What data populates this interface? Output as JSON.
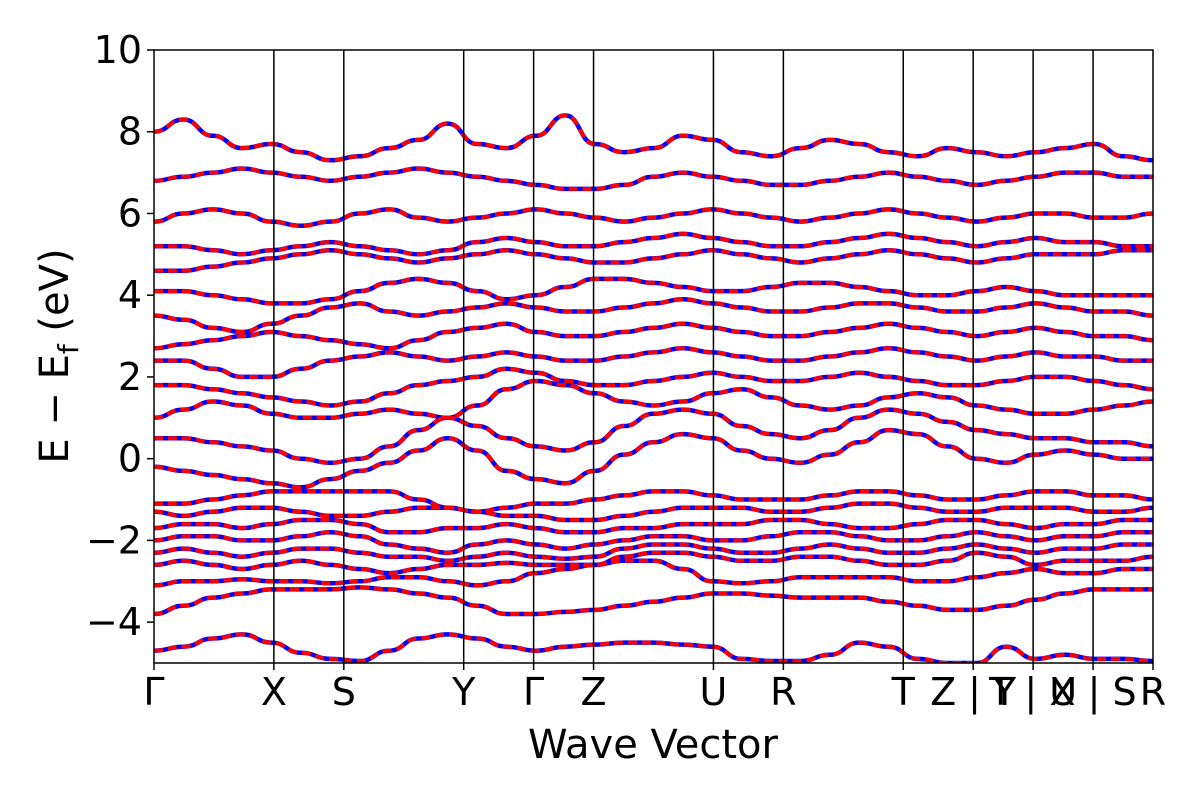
{
  "chart_data": {
    "type": "line",
    "title": "",
    "xlabel": "Wave Vector",
    "ylabel_main": "E − E",
    "ylabel_sub": "f",
    "ylabel_unit": " (eV)",
    "ylim": [
      -5,
      10
    ],
    "yticks": [
      -4,
      -2,
      0,
      2,
      4,
      6,
      8,
      10
    ],
    "ytick_labels": [
      "−4",
      "−2",
      "0",
      "2",
      "4",
      "6",
      "8",
      "10"
    ],
    "xlim": [
      0,
      100
    ],
    "kpoints": [
      {
        "label": "Γ",
        "x": 0
      },
      {
        "label": "X",
        "x": 12
      },
      {
        "label": "S",
        "x": 19
      },
      {
        "label": "Y",
        "x": 31
      },
      {
        "label": "Γ",
        "x": 38
      },
      {
        "label": "Z",
        "x": 44
      },
      {
        "label": "U",
        "x": 56
      },
      {
        "label": "R",
        "x": 63
      },
      {
        "label": "T",
        "x": 75
      },
      {
        "label": "Z | Y",
        "x": 82
      },
      {
        "label": "T | U",
        "x": 88
      },
      {
        "label": "X | S",
        "x": 94
      },
      {
        "label": "R",
        "x": 100
      }
    ],
    "grid": false,
    "series": [
      {
        "color": "#0000ff",
        "style": "solid",
        "bands": [
          [
            -4.7,
            -4.6,
            -4.4,
            -4.3,
            -4.5,
            -4.75,
            -4.9,
            -4.95,
            -4.7,
            -4.4,
            -4.3,
            -4.4,
            -4.6,
            -4.7,
            -4.6,
            -4.55,
            -4.5,
            -4.5,
            -4.55,
            -4.6,
            -4.9,
            -4.95,
            -4.95,
            -4.8,
            -4.5,
            -4.6,
            -4.9,
            -5.0,
            -5.0,
            -4.6,
            -4.9,
            -4.8,
            -4.9,
            -4.9,
            -4.95
          ],
          [
            -3.8,
            -3.6,
            -3.4,
            -3.3,
            -3.2,
            -3.2,
            -3.2,
            -3.15,
            -3.2,
            -3.3,
            -3.4,
            -3.6,
            -3.8,
            -3.8,
            -3.75,
            -3.7,
            -3.6,
            -3.5,
            -3.4,
            -3.3,
            -3.3,
            -3.35,
            -3.4,
            -3.4,
            -3.4,
            -3.5,
            -3.6,
            -3.7,
            -3.7,
            -3.6,
            -3.45,
            -3.3,
            -3.2,
            -3.2,
            -3.2
          ],
          [
            -3.1,
            -3.0,
            -3.0,
            -2.95,
            -3.0,
            -3.0,
            -3.05,
            -3.0,
            -2.9,
            -2.9,
            -3.0,
            -3.1,
            -3.0,
            -2.8,
            -2.7,
            -2.6,
            -2.5,
            -2.5,
            -2.7,
            -3.0,
            -3.05,
            -3.0,
            -2.9,
            -2.9,
            -2.9,
            -2.9,
            -3.0,
            -3.0,
            -2.9,
            -2.8,
            -2.7,
            -2.8,
            -2.8,
            -2.7,
            -2.7
          ],
          [
            -2.6,
            -2.5,
            -2.6,
            -2.7,
            -2.6,
            -2.5,
            -2.6,
            -2.7,
            -2.8,
            -2.7,
            -2.6,
            -2.6,
            -2.55,
            -2.6,
            -2.6,
            -2.6,
            -2.4,
            -2.3,
            -2.3,
            -2.4,
            -2.5,
            -2.5,
            -2.4,
            -2.4,
            -2.5,
            -2.6,
            -2.6,
            -2.5,
            -2.3,
            -2.4,
            -2.6,
            -2.5,
            -2.5,
            -2.5,
            -2.4
          ],
          [
            -2.3,
            -2.2,
            -2.3,
            -2.4,
            -2.3,
            -2.2,
            -2.2,
            -2.3,
            -2.4,
            -2.4,
            -2.5,
            -2.4,
            -2.3,
            -2.4,
            -2.45,
            -2.4,
            -2.2,
            -2.1,
            -2.1,
            -2.2,
            -2.3,
            -2.3,
            -2.2,
            -2.1,
            -2.2,
            -2.3,
            -2.3,
            -2.2,
            -2.1,
            -2.2,
            -2.3,
            -2.2,
            -2.2,
            -2.1,
            -2.1
          ],
          [
            -2.0,
            -1.9,
            -1.9,
            -2.0,
            -2.0,
            -1.9,
            -1.8,
            -1.9,
            -2.1,
            -2.2,
            -2.3,
            -2.1,
            -2.0,
            -2.1,
            -2.2,
            -2.1,
            -2.0,
            -1.9,
            -1.9,
            -2.0,
            -2.0,
            -1.9,
            -1.8,
            -1.8,
            -1.9,
            -2.0,
            -2.0,
            -1.9,
            -1.8,
            -1.9,
            -2.0,
            -1.9,
            -1.9,
            -1.8,
            -1.8
          ],
          [
            -1.7,
            -1.6,
            -1.6,
            -1.7,
            -1.6,
            -1.5,
            -1.5,
            -1.6,
            -1.8,
            -1.8,
            -1.7,
            -1.7,
            -1.6,
            -1.7,
            -1.8,
            -1.8,
            -1.7,
            -1.7,
            -1.6,
            -1.6,
            -1.6,
            -1.5,
            -1.5,
            -1.6,
            -1.7,
            -1.7,
            -1.6,
            -1.5,
            -1.5,
            -1.6,
            -1.7,
            -1.6,
            -1.6,
            -1.5,
            -1.5
          ],
          [
            -1.3,
            -1.4,
            -1.3,
            -1.2,
            -1.2,
            -1.3,
            -1.4,
            -1.4,
            -1.3,
            -1.2,
            -1.2,
            -1.3,
            -1.4,
            -1.4,
            -1.5,
            -1.5,
            -1.4,
            -1.3,
            -1.2,
            -1.2,
            -1.2,
            -1.3,
            -1.3,
            -1.2,
            -1.1,
            -1.1,
            -1.2,
            -1.3,
            -1.3,
            -1.2,
            -1.2,
            -1.2,
            -1.3,
            -1.3,
            -1.2
          ],
          [
            -1.1,
            -1.1,
            -1.0,
            -0.9,
            -0.8,
            -0.8,
            -0.8,
            -0.8,
            -0.8,
            -1.0,
            -1.2,
            -1.3,
            -1.2,
            -1.1,
            -1.1,
            -1.0,
            -0.9,
            -0.8,
            -0.8,
            -0.9,
            -1.0,
            -1.0,
            -1.0,
            -0.9,
            -0.8,
            -0.8,
            -0.9,
            -1.0,
            -1.0,
            -0.9,
            -0.8,
            -0.8,
            -0.9,
            -0.9,
            -1.0
          ],
          [
            -0.2,
            -0.3,
            -0.4,
            -0.5,
            -0.6,
            -0.7,
            -0.5,
            -0.3,
            -0.1,
            0.2,
            0.5,
            0.2,
            -0.3,
            -0.5,
            -0.6,
            -0.3,
            0.1,
            0.4,
            0.6,
            0.5,
            0.2,
            0.0,
            -0.1,
            0.1,
            0.4,
            0.7,
            0.6,
            0.3,
            0.0,
            -0.1,
            0.1,
            0.2,
            0.1,
            0.0,
            0.0
          ],
          [
            0.5,
            0.5,
            0.4,
            0.3,
            0.2,
            0.0,
            -0.1,
            0.0,
            0.3,
            0.7,
            1.0,
            0.8,
            0.5,
            0.3,
            0.2,
            0.4,
            0.8,
            1.1,
            1.2,
            1.1,
            0.8,
            0.6,
            0.5,
            0.7,
            1.0,
            1.2,
            1.1,
            0.9,
            0.7,
            0.6,
            0.5,
            0.5,
            0.4,
            0.4,
            0.3
          ],
          [
            1.0,
            1.2,
            1.4,
            1.3,
            1.1,
            1.0,
            1.0,
            1.1,
            1.2,
            1.1,
            1.0,
            1.3,
            1.7,
            1.9,
            1.8,
            1.6,
            1.4,
            1.3,
            1.4,
            1.6,
            1.7,
            1.5,
            1.3,
            1.2,
            1.3,
            1.5,
            1.6,
            1.5,
            1.3,
            1.2,
            1.1,
            1.1,
            1.2,
            1.3,
            1.4
          ],
          [
            1.8,
            1.8,
            1.7,
            1.6,
            1.5,
            1.4,
            1.3,
            1.4,
            1.6,
            1.8,
            1.9,
            2.0,
            2.2,
            2.1,
            1.9,
            1.8,
            1.8,
            1.9,
            2.0,
            2.1,
            2.0,
            1.9,
            1.9,
            2.0,
            2.1,
            2.0,
            1.9,
            1.8,
            1.8,
            1.9,
            2.0,
            2.0,
            1.9,
            1.8,
            1.7
          ],
          [
            2.4,
            2.4,
            2.2,
            2.0,
            2.0,
            2.2,
            2.4,
            2.5,
            2.6,
            2.5,
            2.4,
            2.5,
            2.6,
            2.5,
            2.4,
            2.4,
            2.5,
            2.6,
            2.7,
            2.6,
            2.5,
            2.4,
            2.4,
            2.5,
            2.6,
            2.7,
            2.6,
            2.5,
            2.4,
            2.5,
            2.6,
            2.5,
            2.5,
            2.4,
            2.4
          ],
          [
            2.7,
            2.8,
            2.9,
            3.0,
            3.1,
            3.0,
            2.9,
            2.8,
            2.7,
            2.9,
            3.1,
            3.2,
            3.3,
            3.1,
            3.0,
            3.0,
            3.1,
            3.2,
            3.3,
            3.2,
            3.1,
            3.0,
            3.0,
            3.1,
            3.2,
            3.3,
            3.2,
            3.1,
            3.0,
            3.1,
            3.2,
            3.1,
            3.0,
            3.0,
            2.9
          ],
          [
            3.5,
            3.4,
            3.2,
            3.1,
            3.3,
            3.5,
            3.7,
            3.8,
            3.6,
            3.5,
            3.6,
            3.7,
            3.8,
            3.7,
            3.6,
            3.6,
            3.7,
            3.8,
            3.9,
            3.8,
            3.7,
            3.6,
            3.6,
            3.7,
            3.8,
            3.8,
            3.7,
            3.6,
            3.6,
            3.7,
            3.8,
            3.7,
            3.6,
            3.6,
            3.5
          ],
          [
            4.1,
            4.1,
            4.0,
            3.9,
            3.8,
            3.8,
            3.9,
            4.1,
            4.3,
            4.4,
            4.3,
            4.1,
            3.9,
            4.0,
            4.2,
            4.4,
            4.4,
            4.3,
            4.2,
            4.1,
            4.1,
            4.2,
            4.3,
            4.3,
            4.2,
            4.1,
            4.0,
            4.0,
            4.1,
            4.2,
            4.1,
            4.0,
            4.0,
            4.0,
            4.0
          ],
          [
            4.6,
            4.6,
            4.7,
            4.8,
            4.9,
            5.0,
            5.1,
            5.0,
            4.9,
            4.8,
            4.9,
            5.0,
            5.1,
            5.0,
            4.9,
            4.8,
            4.8,
            4.9,
            5.0,
            5.1,
            5.0,
            4.9,
            4.8,
            4.9,
            5.0,
            5.1,
            5.0,
            4.9,
            4.8,
            4.9,
            5.0,
            5.0,
            5.0,
            5.1,
            5.1
          ],
          [
            5.2,
            5.2,
            5.1,
            5.0,
            5.1,
            5.2,
            5.3,
            5.2,
            5.1,
            5.0,
            5.1,
            5.3,
            5.4,
            5.3,
            5.2,
            5.2,
            5.3,
            5.4,
            5.5,
            5.4,
            5.3,
            5.2,
            5.2,
            5.3,
            5.4,
            5.5,
            5.4,
            5.3,
            5.2,
            5.3,
            5.4,
            5.3,
            5.3,
            5.2,
            5.2
          ],
          [
            5.8,
            6.0,
            6.1,
            6.0,
            5.8,
            5.7,
            5.8,
            6.0,
            6.1,
            5.9,
            5.8,
            5.9,
            6.0,
            6.1,
            6.0,
            5.9,
            5.8,
            5.9,
            6.0,
            6.1,
            6.0,
            5.9,
            5.8,
            5.9,
            6.0,
            6.1,
            6.0,
            5.9,
            5.8,
            5.9,
            6.0,
            6.0,
            5.9,
            5.9,
            6.0
          ],
          [
            6.8,
            6.9,
            7.0,
            7.1,
            7.0,
            6.9,
            6.8,
            6.9,
            7.0,
            7.1,
            7.0,
            6.9,
            6.8,
            6.7,
            6.6,
            6.6,
            6.7,
            6.9,
            7.0,
            6.9,
            6.8,
            6.7,
            6.7,
            6.8,
            6.9,
            7.0,
            6.9,
            6.8,
            6.7,
            6.8,
            6.9,
            7.0,
            7.0,
            6.9,
            6.9
          ],
          [
            8.0,
            8.3,
            7.9,
            7.6,
            7.7,
            7.5,
            7.3,
            7.4,
            7.6,
            7.8,
            8.2,
            7.7,
            7.6,
            7.9,
            8.4,
            7.7,
            7.5,
            7.6,
            7.9,
            7.8,
            7.5,
            7.4,
            7.6,
            7.8,
            7.7,
            7.5,
            7.4,
            7.6,
            7.5,
            7.4,
            7.5,
            7.6,
            7.7,
            7.4,
            7.3
          ]
        ]
      },
      {
        "color": "#ff0000",
        "style": "dashed",
        "bands": "same-as-blue"
      }
    ]
  }
}
